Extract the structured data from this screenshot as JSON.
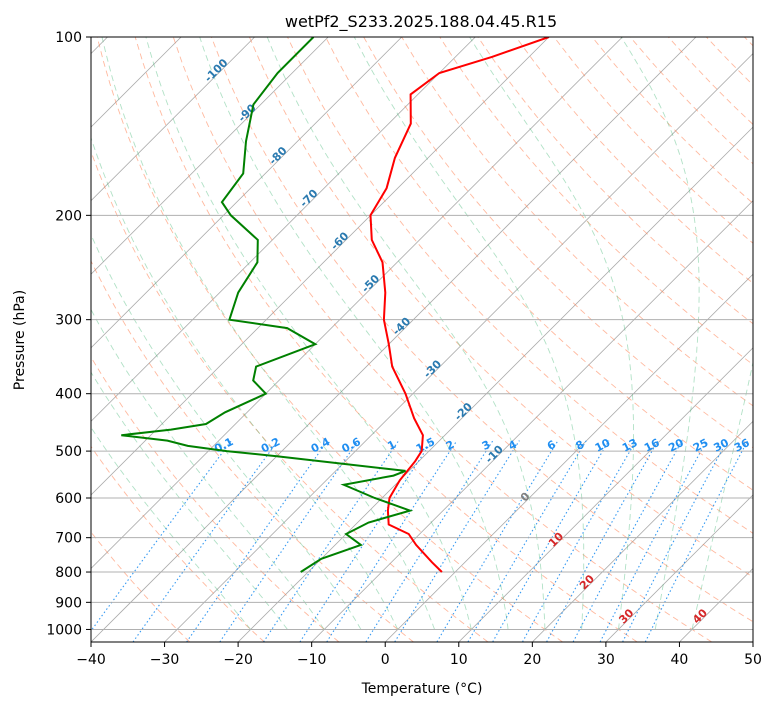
{
  "chart_data": {
    "type": "line",
    "title": "wetPf2_S233.2025.188.04.45.R15",
    "xlabel": "Temperature (°C)",
    "ylabel": "Pressure (hPa)",
    "xlim": [
      -40,
      50
    ],
    "ylim": [
      1050,
      100
    ],
    "y_scale": "log",
    "grid": true,
    "x_ticks": [
      -40,
      -30,
      -20,
      -10,
      0,
      10,
      20,
      30,
      40,
      50
    ],
    "x_tick_labels": [
      "−40",
      "−30",
      "−20",
      "−10",
      "0",
      "10",
      "20",
      "30",
      "40",
      "50"
    ],
    "y_ticks": [
      1000,
      900,
      800,
      700,
      600,
      500,
      400,
      300,
      200,
      100
    ],
    "y_tick_labels": [
      "1000",
      "900",
      "800",
      "700",
      "600",
      "500",
      "400",
      "300",
      "200",
      "100"
    ],
    "series": [
      {
        "color": "#ff0000",
        "pressure": [
          800,
          770,
          720,
          690,
          665,
          630,
          600,
          560,
          520,
          500,
          470,
          440,
          400,
          360,
          330,
          300,
          270,
          240,
          220,
          200,
          180,
          160,
          140,
          125,
          115,
          108,
          100
        ],
        "temperature": [
          -1.8,
          -4.5,
          -9.0,
          -11.5,
          -15.5,
          -17.5,
          -19.0,
          -20.0,
          -20.5,
          -21.0,
          -23.0,
          -26.5,
          -31.0,
          -36.5,
          -40.0,
          -44.0,
          -47.5,
          -52.0,
          -56.5,
          -60.0,
          -61.5,
          -64.5,
          -67.0,
          -71.0,
          -70.0,
          -65.0,
          -60.0
        ]
      },
      {
        "color": "#008000",
        "pressure": [
          800,
          760,
          720,
          690,
          660,
          630,
          600,
          570,
          550,
          540,
          510,
          500,
          490,
          480,
          470,
          460,
          450,
          430,
          400,
          380,
          360,
          330,
          310,
          300,
          270,
          240,
          220,
          200,
          190,
          170,
          150,
          130,
          115,
          100
        ],
        "temperature": [
          -21.0,
          -20.0,
          -16.5,
          -20.0,
          -18.5,
          -14.5,
          -21.0,
          -27.0,
          -21.5,
          -20.5,
          -40.0,
          -47.5,
          -53.5,
          -57.0,
          -64.0,
          -58.0,
          -54.0,
          -53.0,
          -50.0,
          -53.5,
          -55.0,
          -50.0,
          -56.0,
          -65.0,
          -67.5,
          -69.0,
          -72.0,
          -79.0,
          -82.0,
          -83.0,
          -87.0,
          -91.0,
          -92.0,
          -92.0
        ]
      }
    ],
    "mixing_ratio_labels": [
      "0.1",
      "0.2",
      "0.4",
      "0.6",
      "1",
      "1.5",
      "2",
      "3",
      "4",
      "6",
      "8",
      "10",
      "13",
      "16",
      "20",
      "25",
      "30",
      "36"
    ],
    "dry_adiabat_labels": [
      "-100",
      "-90",
      "-80",
      "-70",
      "-60",
      "-50",
      "-40",
      "-30",
      "-20",
      "-10",
      "0",
      "10",
      "20",
      "30",
      "40"
    ],
    "colors": {
      "temperature": "#ff0000",
      "dewpoint": "#008000",
      "isotherm": "#aaaaaa",
      "dry_adiabat": "#ff7f50",
      "moist_adiabat": "#3cb371",
      "mixing_ratio": "#1f8ef1",
      "label_cold": "#2a7ab0",
      "label_warm": "#d62728",
      "label_zero": "#808080"
    }
  }
}
